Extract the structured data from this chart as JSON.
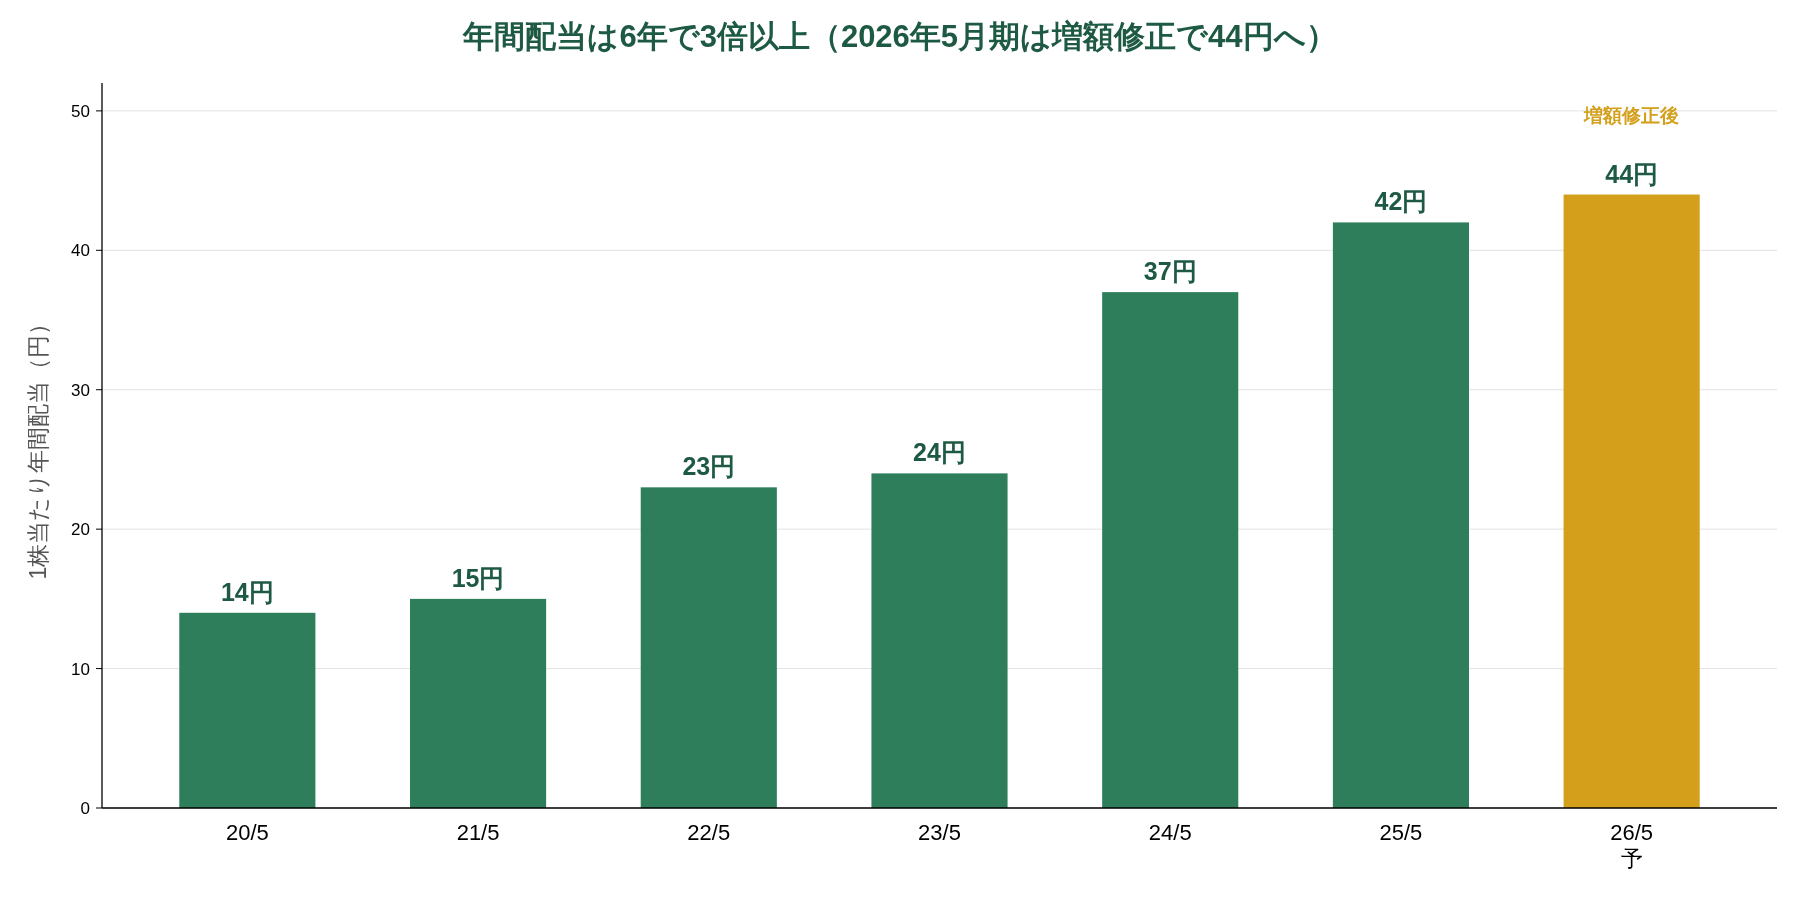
{
  "chart_data": {
    "type": "bar",
    "title": "年間配当は6年で3倍以上（2026年5月期は増額修正で44円へ）",
    "ylabel": "1株当たり年間配当（円）",
    "categories": [
      "20/5",
      "21/5",
      "22/5",
      "23/5",
      "24/5",
      "25/5",
      "26/5\n予"
    ],
    "values": [
      14,
      15,
      23,
      24,
      37,
      42,
      44
    ],
    "colors": [
      "#2e7d5b",
      "#2e7d5b",
      "#2e7d5b",
      "#2e7d5b",
      "#2e7d5b",
      "#2e7d5b",
      "#d4a01c"
    ],
    "value_labels": [
      "14円",
      "15円",
      "23円",
      "24円",
      "37円",
      "42円",
      "44円"
    ],
    "annotations": [
      "増額修正後"
    ],
    "ylim": [
      0,
      52
    ],
    "yticks": [
      0,
      10,
      20,
      30,
      40,
      50
    ],
    "grid": "y"
  }
}
